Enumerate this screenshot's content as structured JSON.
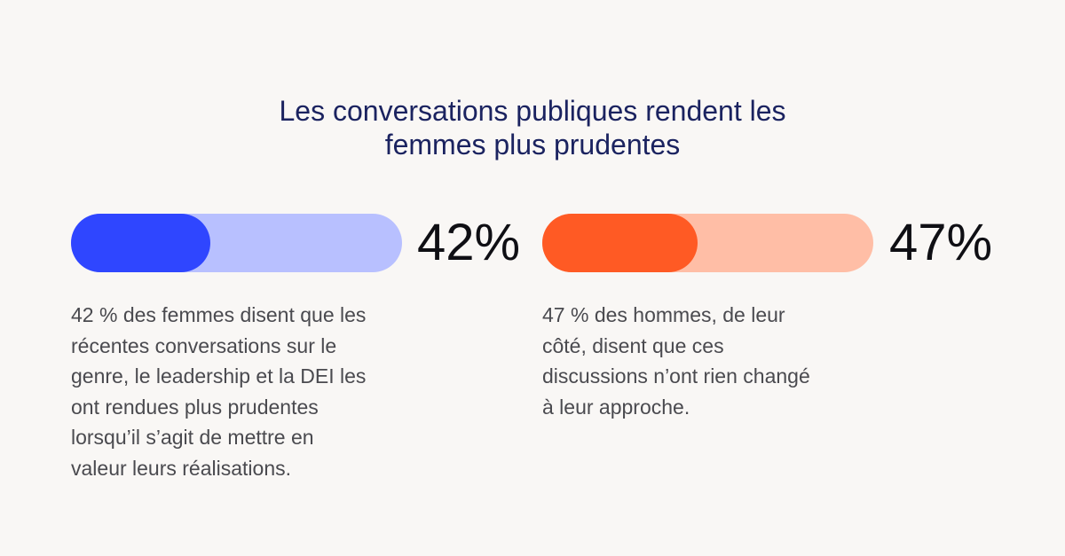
{
  "title": {
    "line1": "Les conversations publiques rendent les",
    "line2": "femmes plus prudentes"
  },
  "chart_data": {
    "type": "bar",
    "series": [
      {
        "value": 42,
        "max": 100,
        "label": "42%",
        "fill_color": "#2f46ff",
        "track_color": "#b8c0ff",
        "description": "42 % des femmes disent que les\nrécentes conversations sur le\ngenre, le leadership et la DEI les\nont rendues plus prudentes\nlorsqu’il s’agit de mettre en\nvaleur leurs réalisations."
      },
      {
        "value": 47,
        "max": 100,
        "label": "47%",
        "fill_color": "#ff5a24",
        "track_color": "#ffbea6",
        "description": "47 % des hommes, de leur\ncôté, disent que ces\ndiscussions n’ont rien changé\nà leur approche."
      }
    ]
  }
}
